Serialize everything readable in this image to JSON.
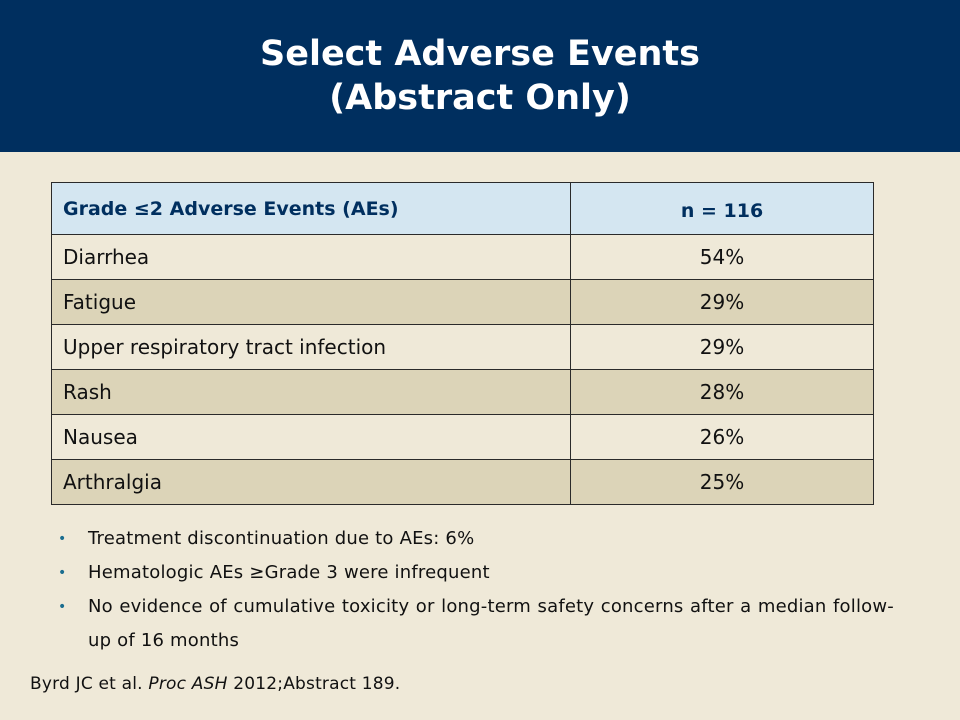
{
  "title": {
    "line1": "Select Adverse Events",
    "line2": "(Abstract Only)"
  },
  "table": {
    "header": [
      "Grade ≤2 Adverse Events (AEs)",
      "n = 116"
    ],
    "rows": [
      {
        "event": "Diarrhea",
        "value": "54%"
      },
      {
        "event": "Fatigue",
        "value": "29%"
      },
      {
        "event": "Upper respiratory tract infection",
        "value": "29%"
      },
      {
        "event": "Rash",
        "value": "28%"
      },
      {
        "event": "Nausea",
        "value": "26%"
      },
      {
        "event": "Arthralgia",
        "value": "25%"
      }
    ]
  },
  "bullets": [
    "Treatment discontinuation due to AEs: 6%",
    "Hematologic AEs ≥Grade 3 were infrequent",
    "No evidence of cumulative toxicity or long-term safety concerns after a median follow-up of 16 months"
  ],
  "citation": {
    "authors": "Byrd JC et al.",
    "journal": "Proc ASH",
    "rest": "2012;Abstract 189."
  },
  "colors": {
    "title_bar": "#002f5f",
    "background": "#efe9d8",
    "header_row": "#d4e6f1",
    "alt_row": "#dcd4b8",
    "bullet": "#1a6d8f"
  }
}
